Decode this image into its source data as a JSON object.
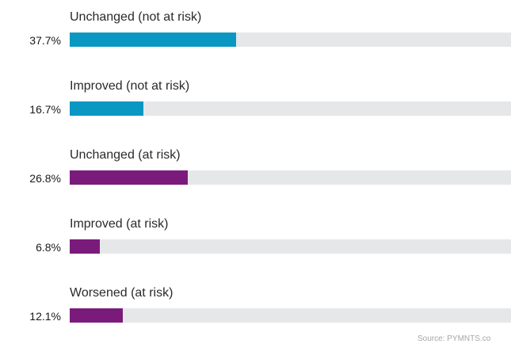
{
  "chart_data": {
    "type": "bar",
    "orientation": "horizontal",
    "categories": [
      "Unchanged (not at risk)",
      "Improved (not at risk)",
      "Unchanged (at risk)",
      "Improved (at risk)",
      "Worsened (at risk)"
    ],
    "values": [
      37.7,
      16.7,
      26.8,
      6.8,
      12.1
    ],
    "value_labels": [
      "37.7%",
      "16.7%",
      "26.8%",
      "6.8%",
      "12.1%"
    ],
    "xlim": [
      0,
      100
    ],
    "colors": [
      "#0a97c2",
      "#0a97c2",
      "#7a1b7c",
      "#7a1b7c",
      "#7a1b7c"
    ],
    "track_color": "#e6e7e9",
    "title": "",
    "xlabel": "",
    "ylabel": "",
    "grid": false,
    "legend": "none"
  },
  "source": "Source: PYMNTS.co"
}
